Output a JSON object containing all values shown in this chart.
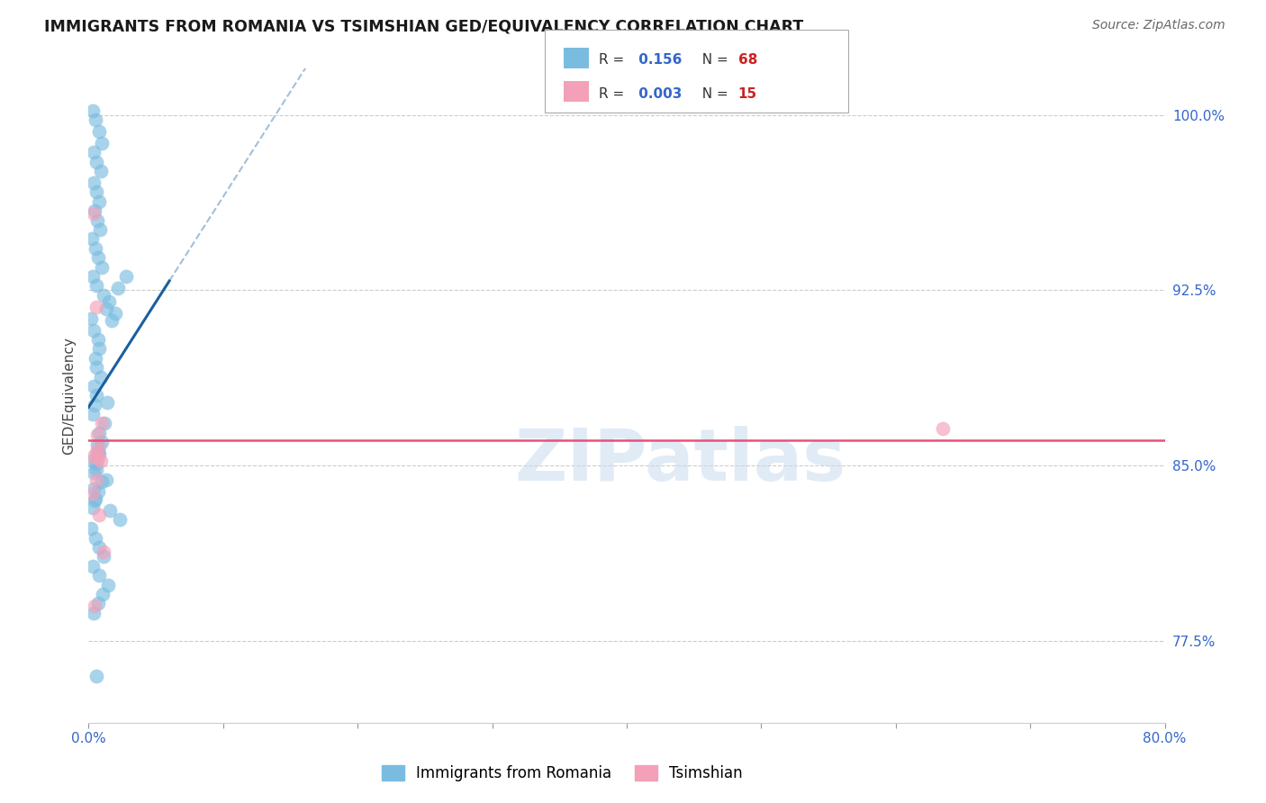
{
  "title": "IMMIGRANTS FROM ROMANIA VS TSIMSHIAN GED/EQUIVALENCY CORRELATION CHART",
  "source": "Source: ZipAtlas.com",
  "ylabel": "GED/Equivalency",
  "legend_label1": "Immigrants from Romania",
  "legend_label2": "Tsimshian",
  "r1": 0.156,
  "n1": 68,
  "r2": 0.003,
  "n2": 15,
  "xlim": [
    0.0,
    80.0
  ],
  "ylim": [
    74.0,
    102.0
  ],
  "yticks": [
    77.5,
    85.0,
    92.5,
    100.0
  ],
  "xtick_positions": [
    0.0,
    80.0
  ],
  "xtick_minor_positions": [
    10.0,
    20.0,
    30.0,
    40.0,
    50.0,
    60.0,
    70.0
  ],
  "color_blue": "#7abce0",
  "color_pink": "#f4a0b8",
  "color_trend_blue": "#1a5fa0",
  "color_trend_pink": "#e8507a",
  "watermark": "ZIPatlas",
  "blue_scatter_x": [
    0.3,
    0.5,
    0.8,
    1.0,
    0.4,
    0.6,
    0.9,
    0.35,
    0.55,
    0.75,
    0.45,
    0.65,
    0.85,
    0.25,
    0.5,
    0.7,
    0.95,
    0.3,
    0.6,
    1.1,
    1.5,
    1.3,
    2.2,
    2.8,
    1.7,
    2.0,
    0.2,
    0.4,
    0.7,
    0.8,
    0.5,
    0.6,
    0.9,
    0.35,
    0.55,
    0.45,
    0.3,
    1.2,
    0.8,
    1.4,
    1.0,
    0.7,
    0.25,
    0.6,
    1.3,
    0.4,
    0.5,
    0.3,
    0.65,
    0.8,
    0.55,
    0.38,
    1.0,
    0.7,
    0.45,
    1.6,
    2.3,
    0.2,
    0.5,
    0.75,
    1.1,
    0.28,
    0.8,
    1.45,
    1.05,
    0.68,
    0.35,
    0.55
  ],
  "blue_scatter_y": [
    100.2,
    99.8,
    99.3,
    98.8,
    98.4,
    98.0,
    97.6,
    97.1,
    96.7,
    96.3,
    95.9,
    95.5,
    95.1,
    94.7,
    94.3,
    93.9,
    93.5,
    93.1,
    92.7,
    92.3,
    92.0,
    91.7,
    92.6,
    93.1,
    91.2,
    91.5,
    91.3,
    90.8,
    90.4,
    90.0,
    89.6,
    89.2,
    88.8,
    88.4,
    88.0,
    87.6,
    87.2,
    86.8,
    86.4,
    87.7,
    86.0,
    85.6,
    85.2,
    84.8,
    84.4,
    84.0,
    83.6,
    83.2,
    85.9,
    85.5,
    85.1,
    84.7,
    84.3,
    83.9,
    83.5,
    83.1,
    82.7,
    82.3,
    81.9,
    81.5,
    81.1,
    80.7,
    80.3,
    79.9,
    79.5,
    79.1,
    78.7,
    76.0
  ],
  "pink_scatter_x": [
    0.4,
    0.6,
    1.0,
    0.8,
    0.35,
    0.55,
    0.7,
    0.9,
    0.6,
    0.3,
    0.75,
    1.1,
    0.45,
    63.5,
    0.65
  ],
  "pink_scatter_y": [
    95.8,
    91.8,
    86.8,
    85.8,
    85.4,
    85.6,
    85.3,
    85.2,
    84.4,
    83.8,
    82.9,
    81.3,
    79.0,
    86.6,
    86.3
  ]
}
